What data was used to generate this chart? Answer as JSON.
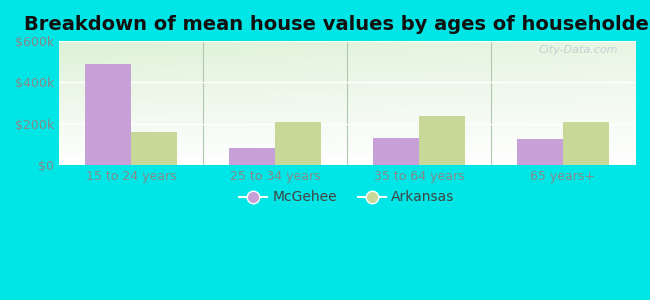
{
  "title": "Breakdown of mean house values by ages of householders",
  "categories": [
    "15 to 24 years",
    "25 to 34 years",
    "35 to 64 years",
    "65 years+"
  ],
  "mcgehee_values": [
    490000,
    80000,
    130000,
    125000
  ],
  "arkansas_values": [
    160000,
    210000,
    235000,
    210000
  ],
  "mcgehee_color": "#c8a0d8",
  "arkansas_color": "#c8d898",
  "bg_color_topleft": "#d8efd0",
  "bg_color_right": "#f0faf0",
  "bg_color_bottom": "#ffffff",
  "outer_bg": "#00e5e5",
  "ylim": [
    0,
    600000
  ],
  "yticks": [
    0,
    200000,
    400000,
    600000
  ],
  "ytick_labels": [
    "$0",
    "$200k",
    "$400k",
    "$600k"
  ],
  "bar_width": 0.32,
  "legend_mcgehee": "McGehee",
  "legend_arkansas": "Arkansas",
  "watermark": "City-Data.com",
  "title_fontsize": 14,
  "tick_fontsize": 9,
  "legend_fontsize": 10,
  "separator_color": "#b0c8b0",
  "grid_color": "#d8ead8",
  "tick_color": "#888888"
}
